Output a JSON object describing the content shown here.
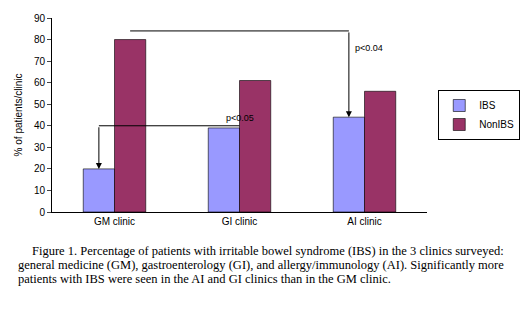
{
  "chart_data": {
    "type": "bar",
    "categories": [
      "GM clinic",
      "GI clinic",
      "AI clinic"
    ],
    "series": [
      {
        "name": "IBS",
        "color": "#9999ff",
        "values": [
          20,
          39,
          44
        ]
      },
      {
        "name": "NonIBS",
        "color": "#993366",
        "values": [
          80,
          61,
          56
        ]
      }
    ],
    "ylabel": "% of patients/clinic",
    "ylim": [
      0,
      90
    ],
    "yticks": [
      0,
      10,
      20,
      30,
      40,
      50,
      60,
      70,
      80,
      90
    ],
    "grid": false,
    "legend": "right",
    "annotations": [
      {
        "text": "p<0.05",
        "compare": [
          "GM clinic",
          "GI clinic"
        ],
        "arrow_to": "GM clinic"
      },
      {
        "text": "p<0.04",
        "compare": [
          "GM clinic",
          "AI clinic"
        ],
        "arrow_to": "AI clinic"
      }
    ],
    "caption": "Figure 1. Percentage of patients with irritable bowel syndrome (IBS) in the 3 clinics surveyed: general medicine (GM), gastroenterology (GI), and allergy/immunology (AI). Significantly more patients with IBS were seen in the AI and GI clinics than in the GM clinic."
  }
}
